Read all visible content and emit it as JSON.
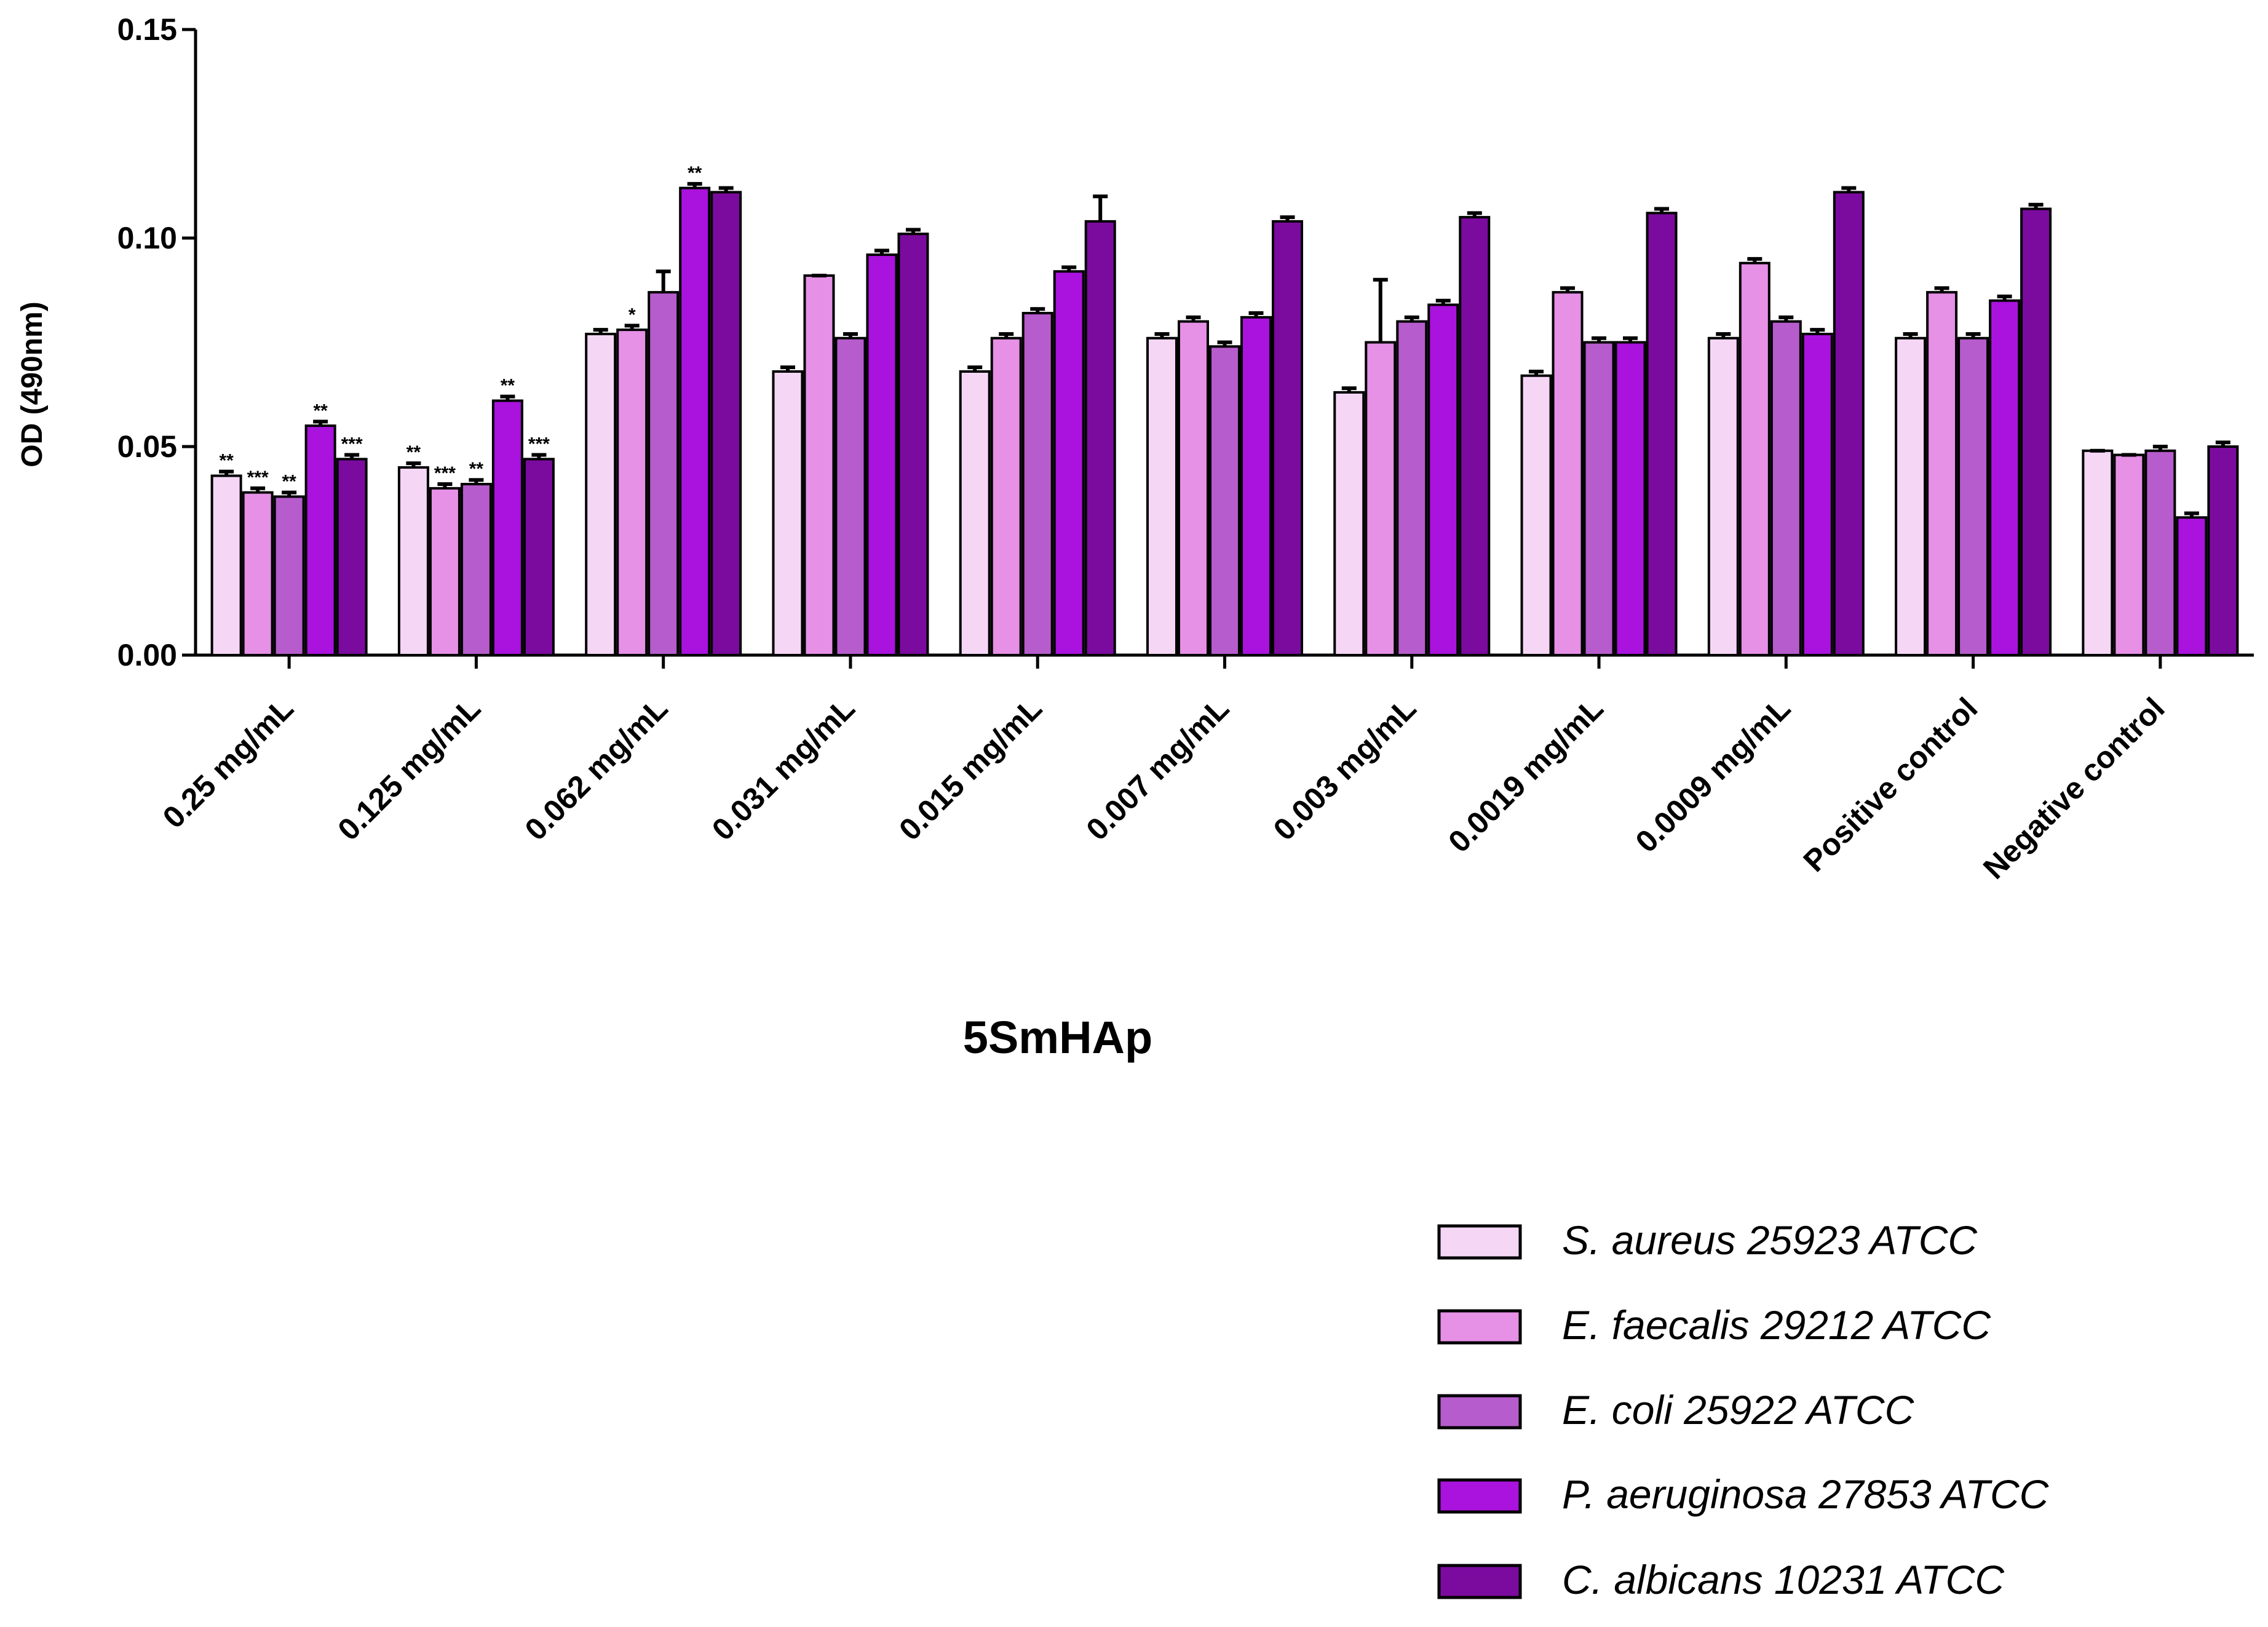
{
  "chart_data": {
    "type": "bar",
    "title": "",
    "xlabel": "5SmHAp",
    "ylabel": "OD (490nm)",
    "ylim": [
      0,
      0.15
    ],
    "yticks": [
      "0.00",
      "0.05",
      "0.10",
      "0.15"
    ],
    "grid": false,
    "legend_position": "bottom-right",
    "categories": [
      "0.25 mg/mL",
      "0.125 mg/mL",
      "0.062 mg/mL",
      "0.031 mg/mL",
      "0.015 mg/mL",
      "0.007 mg/mL",
      "0.003 mg/mL",
      "0.0019 mg/mL",
      "0.0009 mg/mL",
      "Positive control",
      "Negative control"
    ],
    "series": [
      {
        "name": "S. aureus 25923 ATCC",
        "color": "#f5d6f5",
        "values": [
          0.043,
          0.045,
          0.077,
          0.068,
          0.068,
          0.076,
          0.063,
          0.067,
          0.076,
          0.076,
          0.049
        ],
        "errors": [
          0.001,
          0.001,
          0.001,
          0.001,
          0.001,
          0.001,
          0.001,
          0.001,
          0.001,
          0.001,
          0.0
        ],
        "annotations": [
          "**",
          "**",
          "",
          "",
          "",
          "",
          "",
          "",
          "",
          "",
          ""
        ]
      },
      {
        "name": "E. faecalis 29212 ATCC",
        "color": "#e690e6",
        "values": [
          0.039,
          0.04,
          0.078,
          0.091,
          0.076,
          0.08,
          0.075,
          0.087,
          0.094,
          0.087,
          0.048
        ],
        "errors": [
          0.001,
          0.001,
          0.001,
          0.0,
          0.001,
          0.001,
          0.015,
          0.001,
          0.001,
          0.001,
          0.0
        ],
        "annotations": [
          "***",
          "***",
          "*",
          "",
          "",
          "",
          "",
          "",
          "",
          "",
          ""
        ]
      },
      {
        "name": "E. coli 25922 ATCC",
        "color": "#b65ccc",
        "values": [
          0.038,
          0.041,
          0.087,
          0.076,
          0.082,
          0.074,
          0.08,
          0.075,
          0.08,
          0.076,
          0.049
        ],
        "errors": [
          0.001,
          0.001,
          0.005,
          0.001,
          0.001,
          0.001,
          0.001,
          0.001,
          0.001,
          0.001,
          0.001
        ],
        "annotations": [
          "**",
          "**",
          "",
          "",
          "",
          "",
          "",
          "",
          "",
          "",
          ""
        ]
      },
      {
        "name": "P. aeruginosa 27853 ATCC",
        "color": "#aa12de",
        "values": [
          0.055,
          0.061,
          0.112,
          0.096,
          0.092,
          0.081,
          0.084,
          0.075,
          0.077,
          0.085,
          0.033
        ],
        "errors": [
          0.001,
          0.001,
          0.001,
          0.001,
          0.001,
          0.001,
          0.001,
          0.001,
          0.001,
          0.001,
          0.001
        ],
        "annotations": [
          "**",
          "**",
          "**",
          "",
          "",
          "",
          "",
          "",
          "",
          "",
          ""
        ]
      },
      {
        "name": "C. albicans 10231 ATCC",
        "color": "#7b0b9e",
        "values": [
          0.047,
          0.047,
          0.111,
          0.101,
          0.104,
          0.104,
          0.105,
          0.106,
          0.111,
          0.107,
          0.05
        ],
        "errors": [
          0.001,
          0.001,
          0.001,
          0.001,
          0.006,
          0.001,
          0.001,
          0.001,
          0.001,
          0.001,
          0.001
        ],
        "annotations": [
          "***",
          "***",
          "",
          "",
          "",
          "",
          "",
          "",
          "",
          "",
          ""
        ]
      }
    ]
  }
}
